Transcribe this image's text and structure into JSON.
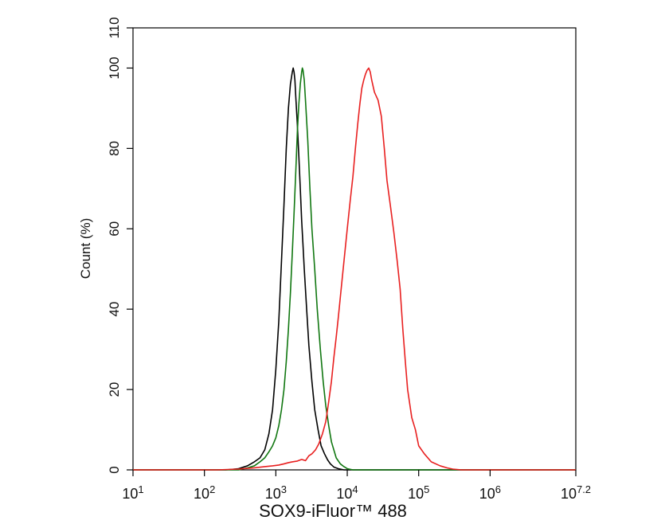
{
  "chart_data": {
    "type": "line",
    "subtype": "flow-cytometry-histogram",
    "xlabel": "SOX9-iFluor™ 488",
    "ylabel": "Count  (%)",
    "x_scale": "log10",
    "xlim": [
      10,
      15848931.92
    ],
    "ylim": [
      0,
      110
    ],
    "grid": false,
    "legend": "none",
    "x_ticks": [
      {
        "base": "10",
        "exp": "1"
      },
      {
        "base": "10",
        "exp": "2"
      },
      {
        "base": "10",
        "exp": "3"
      },
      {
        "base": "10",
        "exp": "4"
      },
      {
        "base": "10",
        "exp": "5"
      },
      {
        "base": "10",
        "exp": "6"
      },
      {
        "base": "10",
        "exp": "7.2"
      }
    ],
    "y_ticks": [
      "0",
      "20",
      "40",
      "60",
      "80",
      "100",
      "110"
    ],
    "series": [
      {
        "color": "#000000",
        "x": [
          10,
          200,
          300,
          400,
          500,
          600,
          700,
          800,
          900,
          1000,
          1100,
          1200,
          1300,
          1400,
          1500,
          1600,
          1700,
          1750,
          1800,
          1850,
          1900,
          2000,
          2100,
          2200,
          2300,
          2400,
          2500,
          2700,
          2900,
          3200,
          3500,
          3900,
          4300,
          4800,
          5300,
          5800,
          6500,
          7500,
          9000,
          15848931.92
        ],
        "y": [
          0,
          0,
          0.3,
          1,
          2,
          3,
          5,
          9,
          15,
          25,
          37,
          52,
          66,
          80,
          90,
          96,
          99,
          100,
          99,
          97,
          93,
          86,
          78,
          70,
          62,
          56,
          50,
          40,
          31,
          22,
          15,
          10,
          6,
          4,
          2.5,
          1.5,
          0.7,
          0.3,
          0,
          0
        ]
      },
      {
        "color": "#117711",
        "x": [
          10,
          300,
          400,
          500,
          600,
          700,
          800,
          900,
          1000,
          1100,
          1200,
          1300,
          1400,
          1500,
          1600,
          1700,
          1800,
          1900,
          2000,
          2100,
          2200,
          2300,
          2350,
          2400,
          2500,
          2600,
          2800,
          3000,
          3200,
          3500,
          3800,
          4200,
          4600,
          5000,
          5500,
          6000,
          7000,
          8000,
          9000,
          10000,
          12000,
          15848931.92
        ],
        "y": [
          0,
          0,
          0.5,
          1,
          2,
          3,
          4.5,
          6,
          8,
          11,
          15,
          20,
          27,
          35,
          44,
          54,
          64,
          74,
          84,
          91,
          96,
          99,
          100,
          99.5,
          97,
          92,
          82,
          70,
          60,
          50,
          40,
          30,
          22,
          16,
          11,
          7,
          3,
          1.5,
          0.8,
          0.3,
          0,
          0
        ]
      },
      {
        "color": "#e82020",
        "x": [
          10,
          150,
          300,
          500,
          700,
          900,
          1100,
          1300,
          1500,
          1700,
          2000,
          2300,
          2600,
          2900,
          3200,
          3600,
          4000,
          4500,
          5000,
          5500,
          6000,
          6500,
          7000,
          7500,
          8000,
          9000,
          10000,
          11000,
          12000,
          13000,
          14000,
          15000,
          16000,
          17000,
          18000,
          19000,
          20000,
          21000,
          22000,
          24000,
          27000,
          30000,
          33000,
          36000,
          40000,
          45000,
          50000,
          55000,
          60000,
          65000,
          70000,
          80000,
          90000,
          100000,
          120000,
          150000,
          200000,
          250000,
          300000,
          400000,
          15848931.92
        ],
        "y": [
          0,
          0,
          0.2,
          0.5,
          0.8,
          1,
          1.2,
          1.5,
          1.8,
          2,
          2.2,
          2.6,
          2.3,
          3.5,
          4,
          5,
          6.5,
          9,
          12,
          17,
          22,
          28,
          33,
          38,
          43,
          52,
          60,
          67,
          73,
          80,
          86,
          91,
          95,
          97,
          98.5,
          99.5,
          100,
          99,
          97,
          94,
          92,
          88,
          80,
          72,
          66,
          59,
          52,
          45,
          35,
          27,
          20,
          13,
          10,
          6,
          4,
          2,
          1,
          0.5,
          0.2,
          0,
          0
        ]
      }
    ]
  }
}
